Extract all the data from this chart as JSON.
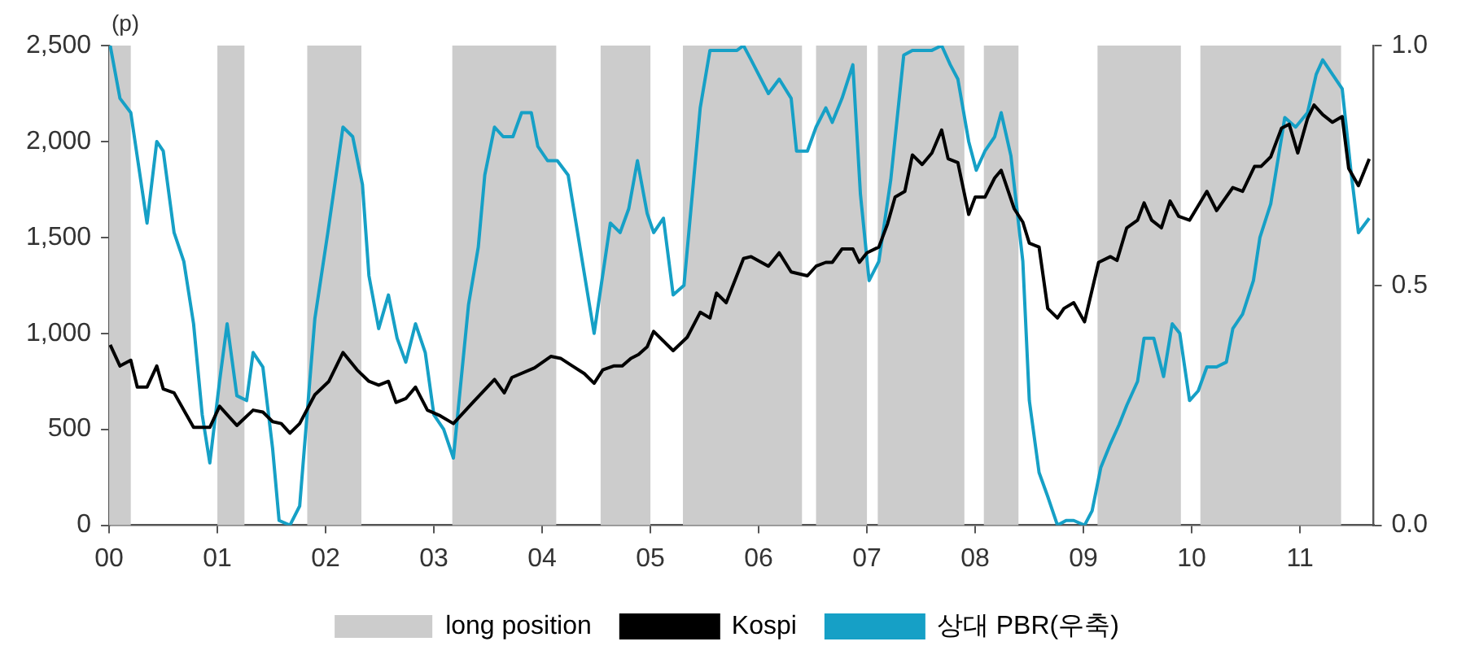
{
  "chart_data": {
    "type": "line",
    "ylabel": "(p)",
    "legend": "bottom",
    "grid": false,
    "marker": "none",
    "line_style": "solid",
    "xlim": [
      2000,
      2011.68
    ],
    "xticks": [
      {
        "value": 2000,
        "label": "00"
      },
      {
        "value": 2001,
        "label": "01"
      },
      {
        "value": 2002,
        "label": "02"
      },
      {
        "value": 2003,
        "label": "03"
      },
      {
        "value": 2004,
        "label": "04"
      },
      {
        "value": 2005,
        "label": "05"
      },
      {
        "value": 2006,
        "label": "06"
      },
      {
        "value": 2007,
        "label": "07"
      },
      {
        "value": 2008,
        "label": "08"
      },
      {
        "value": 2009,
        "label": "09"
      },
      {
        "value": 2010,
        "label": "10"
      },
      {
        "value": 2011,
        "label": "11"
      }
    ],
    "ylim": [
      0,
      2500
    ],
    "yticks": [
      0,
      500,
      {
        "value": 1000,
        "label": "1,000"
      },
      {
        "value": 1500,
        "label": "1,500"
      },
      {
        "value": 2000,
        "label": "2,000"
      },
      {
        "value": 2500,
        "label": "2,500"
      }
    ],
    "y2lim": [
      0,
      1
    ],
    "y2ticks": [
      {
        "value": 0,
        "label": "0.0"
      },
      {
        "value": 0.5,
        "label": "0.5"
      },
      {
        "value": 1,
        "label": "1.0"
      }
    ],
    "bands": [
      {
        "axis": "x",
        "from": 2000.0,
        "to": 2000.2,
        "label": "long position",
        "color": "#cccccc"
      },
      {
        "axis": "x",
        "from": 2001.0,
        "to": 2001.25,
        "color": "#cccccc"
      },
      {
        "axis": "x",
        "from": 2001.83,
        "to": 2002.33,
        "color": "#cccccc"
      },
      {
        "axis": "x",
        "from": 2003.17,
        "to": 2004.13,
        "color": "#cccccc"
      },
      {
        "axis": "x",
        "from": 2004.54,
        "to": 2005.0,
        "color": "#cccccc"
      },
      {
        "axis": "x",
        "from": 2005.3,
        "to": 2006.4,
        "color": "#cccccc"
      },
      {
        "axis": "x",
        "from": 2006.53,
        "to": 2007.0,
        "color": "#cccccc"
      },
      {
        "axis": "x",
        "from": 2007.1,
        "to": 2007.9,
        "color": "#cccccc"
      },
      {
        "axis": "x",
        "from": 2008.08,
        "to": 2008.4,
        "color": "#cccccc"
      },
      {
        "axis": "x",
        "from": 2009.13,
        "to": 2009.9,
        "color": "#cccccc"
      },
      {
        "axis": "x",
        "from": 2010.08,
        "to": 2011.38,
        "color": "#cccccc"
      }
    ],
    "series": [
      {
        "name": "Kospi",
        "color": "#000000",
        "x": [
          2000.01,
          2000.1,
          2000.2,
          2000.26,
          2000.35,
          2000.44,
          2000.5,
          2000.6,
          2000.78,
          2000.93,
          2001.02,
          2001.18,
          2001.33,
          2001.42,
          2001.51,
          2001.59,
          2001.67,
          2001.76,
          2001.9,
          2002.03,
          2002.16,
          2002.29,
          2002.4,
          2002.49,
          2002.58,
          2002.65,
          2002.74,
          2002.83,
          2002.94,
          2003.06,
          2003.18,
          2003.36,
          2003.56,
          2003.65,
          2003.72,
          2003.93,
          2004.08,
          2004.17,
          2004.28,
          2004.39,
          2004.48,
          2004.56,
          2004.66,
          2004.74,
          2004.82,
          2004.89,
          2004.97,
          2005.03,
          2005.21,
          2005.34,
          2005.46,
          2005.55,
          2005.61,
          2005.7,
          2005.86,
          2005.93,
          2006.09,
          2006.19,
          2006.3,
          2006.45,
          2006.53,
          2006.62,
          2006.68,
          2006.77,
          2006.87,
          2006.93,
          2007.0,
          2007.11,
          2007.19,
          2007.26,
          2007.35,
          2007.42,
          2007.51,
          2007.6,
          2007.69,
          2007.75,
          2007.84,
          2007.94,
          2008.0,
          2008.09,
          2008.18,
          2008.24,
          2008.36,
          2008.44,
          2008.5,
          2008.59,
          2008.67,
          2008.76,
          2008.82,
          2008.91,
          2009.01,
          2009.14,
          2009.25,
          2009.31,
          2009.4,
          2009.5,
          2009.56,
          2009.63,
          2009.72,
          2009.8,
          2009.88,
          2009.98,
          2010.14,
          2010.23,
          2010.38,
          2010.47,
          2010.58,
          2010.64,
          2010.73,
          2010.83,
          2010.9,
          2010.98,
          2011.07,
          2011.13,
          2011.21,
          2011.3,
          2011.39,
          2011.45,
          2011.54,
          2011.64
        ],
        "values": [
          940,
          830,
          860,
          720,
          720,
          830,
          710,
          690,
          510,
          510,
          620,
          520,
          600,
          590,
          540,
          530,
          480,
          530,
          680,
          750,
          900,
          810,
          750,
          730,
          750,
          640,
          660,
          720,
          600,
          570,
          530,
          640,
          760,
          690,
          770,
          820,
          880,
          870,
          830,
          790,
          740,
          810,
          830,
          830,
          870,
          890,
          930,
          1010,
          910,
          980,
          1110,
          1080,
          1210,
          1160,
          1390,
          1400,
          1350,
          1420,
          1320,
          1300,
          1350,
          1370,
          1370,
          1440,
          1440,
          1370,
          1420,
          1450,
          1570,
          1710,
          1740,
          1930,
          1880,
          1940,
          2060,
          1910,
          1890,
          1620,
          1710,
          1710,
          1810,
          1850,
          1650,
          1580,
          1470,
          1450,
          1130,
          1080,
          1130,
          1160,
          1060,
          1370,
          1400,
          1380,
          1550,
          1590,
          1680,
          1590,
          1550,
          1690,
          1610,
          1590,
          1740,
          1640,
          1760,
          1740,
          1870,
          1870,
          1920,
          2070,
          2090,
          1940,
          2120,
          2190,
          2140,
          2100,
          2130,
          1860,
          1770,
          1910
        ]
      },
      {
        "name": "상대 PBR(우축)",
        "color": "#16a0c6",
        "axis": "y2",
        "x": [
          2000.01,
          2000.1,
          2000.2,
          2000.35,
          2000.44,
          2000.5,
          2000.6,
          2000.69,
          2000.78,
          2000.86,
          2000.93,
          2001.02,
          2001.09,
          2001.18,
          2001.27,
          2001.33,
          2001.42,
          2001.51,
          2001.57,
          2001.67,
          2001.76,
          2001.9,
          2002.02,
          2002.16,
          2002.25,
          2002.34,
          2002.4,
          2002.49,
          2002.58,
          2002.66,
          2002.74,
          2002.83,
          2002.92,
          2003.0,
          2003.09,
          2003.18,
          2003.32,
          2003.41,
          2003.47,
          2003.56,
          2003.64,
          2003.73,
          2003.81,
          2003.9,
          2003.96,
          2004.05,
          2004.14,
          2004.24,
          2004.48,
          2004.63,
          2004.72,
          2004.8,
          2004.88,
          2004.97,
          2005.03,
          2005.12,
          2005.21,
          2005.31,
          2005.46,
          2005.55,
          2005.8,
          2005.86,
          2005.93,
          2006.09,
          2006.19,
          2006.3,
          2006.35,
          2006.45,
          2006.53,
          2006.62,
          2006.68,
          2006.77,
          2006.87,
          2006.94,
          2007.02,
          2007.11,
          2007.22,
          2007.34,
          2007.42,
          2007.6,
          2007.69,
          2007.77,
          2007.84,
          2007.94,
          2008.01,
          2008.09,
          2008.18,
          2008.24,
          2008.33,
          2008.44,
          2008.5,
          2008.59,
          2008.67,
          2008.76,
          2008.84,
          2008.91,
          2009.01,
          2009.08,
          2009.16,
          2009.25,
          2009.33,
          2009.4,
          2009.5,
          2009.56,
          2009.65,
          2009.74,
          2009.82,
          2009.89,
          2009.98,
          2010.06,
          2010.14,
          2010.23,
          2010.32,
          2010.38,
          2010.47,
          2010.57,
          2010.63,
          2010.73,
          2010.86,
          2010.96,
          2011.07,
          2011.15,
          2011.21,
          2011.3,
          2011.39,
          2011.47,
          2011.54,
          2011.64
        ],
        "values": [
          1.0,
          0.89,
          0.86,
          0.63,
          0.8,
          0.78,
          0.61,
          0.55,
          0.42,
          0.23,
          0.13,
          0.3,
          0.42,
          0.27,
          0.26,
          0.36,
          0.33,
          0.16,
          0.01,
          0.0,
          0.04,
          0.43,
          0.61,
          0.83,
          0.81,
          0.71,
          0.52,
          0.41,
          0.48,
          0.39,
          0.34,
          0.42,
          0.36,
          0.23,
          0.2,
          0.14,
          0.46,
          0.58,
          0.73,
          0.83,
          0.81,
          0.81,
          0.86,
          0.86,
          0.79,
          0.76,
          0.76,
          0.73,
          0.4,
          0.63,
          0.61,
          0.66,
          0.76,
          0.65,
          0.61,
          0.64,
          0.48,
          0.5,
          0.87,
          0.99,
          0.99,
          1.0,
          0.97,
          0.9,
          0.93,
          0.89,
          0.78,
          0.78,
          0.83,
          0.87,
          0.84,
          0.89,
          0.96,
          0.69,
          0.51,
          0.55,
          0.72,
          0.98,
          0.99,
          0.99,
          1.0,
          0.96,
          0.93,
          0.8,
          0.74,
          0.78,
          0.81,
          0.86,
          0.77,
          0.55,
          0.26,
          0.11,
          0.06,
          0.0,
          0.01,
          0.01,
          0.0,
          0.03,
          0.12,
          0.17,
          0.21,
          0.25,
          0.3,
          0.39,
          0.39,
          0.31,
          0.42,
          0.4,
          0.26,
          0.28,
          0.33,
          0.33,
          0.34,
          0.41,
          0.44,
          0.51,
          0.6,
          0.67,
          0.85,
          0.83,
          0.86,
          0.94,
          0.97,
          0.94,
          0.91,
          0.74,
          0.61,
          0.64
        ]
      }
    ]
  }
}
